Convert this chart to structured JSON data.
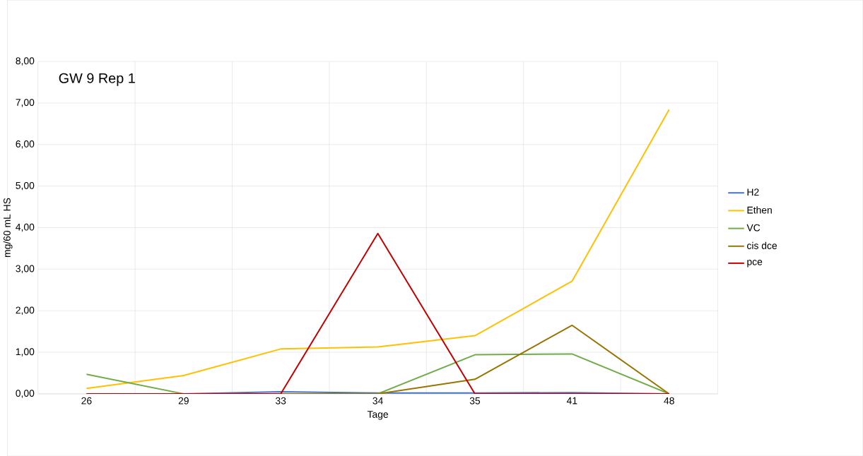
{
  "chart_data": {
    "type": "line",
    "title": "GW 9 Rep 1",
    "xlabel": "Tage",
    "ylabel": "mg/60 mL HS",
    "categories": [
      "26",
      "29",
      "33",
      "34",
      "35",
      "41",
      "48"
    ],
    "ylim": [
      0,
      8
    ],
    "yticks": [
      {
        "value": 0,
        "label": "0,00"
      },
      {
        "value": 1,
        "label": "1,00"
      },
      {
        "value": 2,
        "label": "2,00"
      },
      {
        "value": 3,
        "label": "3,00"
      },
      {
        "value": 4,
        "label": "4,00"
      },
      {
        "value": 5,
        "label": "5,00"
      },
      {
        "value": 6,
        "label": "6,00"
      },
      {
        "value": 7,
        "label": "7,00"
      },
      {
        "value": 8,
        "label": "8,00"
      }
    ],
    "grid": true,
    "legend": "right",
    "marker": "none",
    "line_style": "solid",
    "series": [
      {
        "name": "H2",
        "color": "#4472c4",
        "values": [
          0,
          0,
          0.05,
          0.02,
          0.02,
          0.03,
          0
        ]
      },
      {
        "name": "Ethen",
        "color": "#ffc000",
        "values": [
          0.13,
          0.44,
          1.08,
          1.13,
          1.4,
          2.71,
          6.84
        ]
      },
      {
        "name": "VC",
        "color": "#70ad47",
        "values": [
          0.47,
          0,
          0,
          0,
          0.94,
          0.96,
          0
        ]
      },
      {
        "name": "cis dce",
        "color": "#997300",
        "values": [
          0,
          0,
          0,
          0,
          0.35,
          1.65,
          0
        ]
      },
      {
        "name": "pce",
        "color": "#c00000",
        "values": [
          0,
          0,
          0,
          3.86,
          0,
          0,
          0
        ]
      }
    ]
  }
}
